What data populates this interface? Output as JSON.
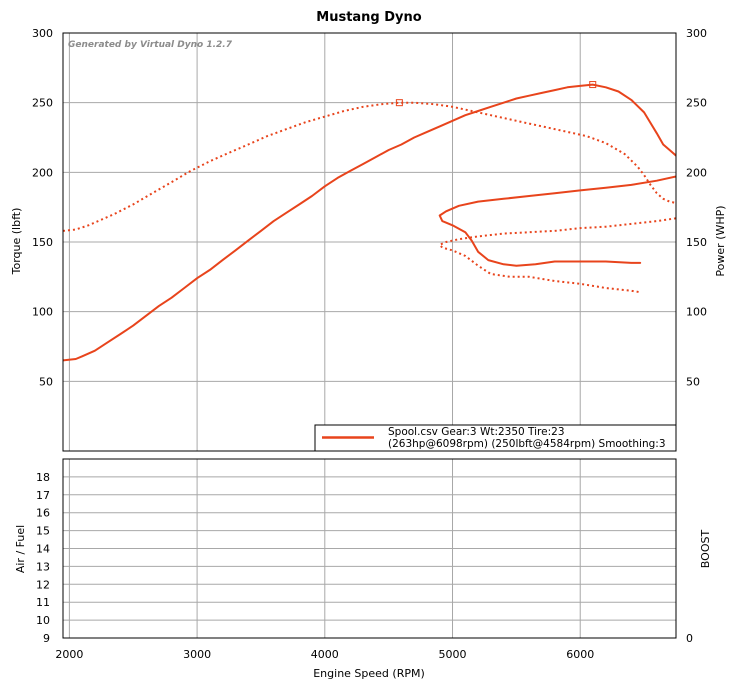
{
  "chart_data": [
    {
      "type": "line",
      "title": "Mustang Dyno",
      "watermark": "Generated by Virtual Dyno 1.2.7",
      "xlabel": "Engine Speed (RPM)",
      "ylabel": "Torque (lbft)",
      "y2label": "Power (WHP)",
      "xlim": [
        1950,
        6750
      ],
      "ylim": [
        0,
        300
      ],
      "y2lim": [
        0,
        300
      ],
      "x_ticks": [
        2000,
        3000,
        4000,
        5000,
        6000
      ],
      "y_ticks": [
        50,
        100,
        150,
        200,
        250,
        300
      ],
      "y2_ticks": [
        50,
        100,
        150,
        200,
        250,
        300
      ],
      "grid": true,
      "legend": {
        "placement": "bottom-right",
        "line1": "Spool.csv Gear:3 Wt:2350 Tire:23",
        "line2": "(263hp@6098rpm) (250lbft@4584rpm) Smoothing:3"
      },
      "series": [
        {
          "style": "solid",
          "color": "#e8441c",
          "axis": "power",
          "points": [
            [
              1950,
              65
            ],
            [
              2050,
              66
            ],
            [
              2100,
              68
            ],
            [
              2200,
              72
            ],
            [
              2300,
              78
            ],
            [
              2400,
              84
            ],
            [
              2500,
              90
            ],
            [
              2600,
              97
            ],
            [
              2700,
              104
            ],
            [
              2800,
              110
            ],
            [
              2900,
              117
            ],
            [
              3000,
              124
            ],
            [
              3100,
              130
            ],
            [
              3200,
              137
            ],
            [
              3300,
              144
            ],
            [
              3400,
              151
            ],
            [
              3500,
              158
            ],
            [
              3600,
              165
            ],
            [
              3700,
              171
            ],
            [
              3800,
              177
            ],
            [
              3900,
              183
            ],
            [
              4000,
              190
            ],
            [
              4100,
              196
            ],
            [
              4200,
              201
            ],
            [
              4300,
              206
            ],
            [
              4400,
              211
            ],
            [
              4500,
              216
            ],
            [
              4600,
              220
            ],
            [
              4700,
              225
            ],
            [
              4800,
              229
            ],
            [
              4900,
              233
            ],
            [
              5000,
              237
            ],
            [
              5100,
              241
            ],
            [
              5200,
              244
            ],
            [
              5300,
              247
            ],
            [
              5400,
              250
            ],
            [
              5500,
              253
            ],
            [
              5600,
              255
            ],
            [
              5700,
              257
            ],
            [
              5800,
              259
            ],
            [
              5900,
              261
            ],
            [
              6000,
              262
            ],
            [
              6098,
              263
            ],
            [
              6200,
              261
            ],
            [
              6300,
              258
            ],
            [
              6400,
              252
            ],
            [
              6500,
              243
            ],
            [
              6600,
              228
            ],
            [
              6650,
              220
            ],
            [
              6700,
              216
            ],
            [
              6750,
              212
            ]
          ]
        },
        {
          "style": "dotted",
          "color": "#e8441c",
          "axis": "torque",
          "points": [
            [
              1950,
              158
            ],
            [
              2050,
              159
            ],
            [
              2150,
              162
            ],
            [
              2250,
              166
            ],
            [
              2350,
              170
            ],
            [
              2500,
              177
            ],
            [
              2650,
              185
            ],
            [
              2800,
              193
            ],
            [
              2950,
              201
            ],
            [
              3100,
              208
            ],
            [
              3250,
              214
            ],
            [
              3400,
              220
            ],
            [
              3550,
              226
            ],
            [
              3700,
              231
            ],
            [
              3850,
              236
            ],
            [
              4000,
              240
            ],
            [
              4150,
              244
            ],
            [
              4300,
              247
            ],
            [
              4450,
              249
            ],
            [
              4584,
              250
            ],
            [
              4700,
              250
            ],
            [
              4850,
              249
            ],
            [
              5000,
              247
            ],
            [
              5150,
              244
            ],
            [
              5300,
              241
            ],
            [
              5450,
              238
            ],
            [
              5600,
              235
            ],
            [
              5750,
              232
            ],
            [
              5900,
              229
            ],
            [
              6050,
              226
            ],
            [
              6200,
              221
            ],
            [
              6350,
              213
            ],
            [
              6450,
              204
            ],
            [
              6500,
              198
            ],
            [
              6550,
              191
            ],
            [
              6600,
              185
            ],
            [
              6650,
              181
            ],
            [
              6700,
              179
            ],
            [
              6750,
              178
            ]
          ]
        },
        {
          "style": "solid",
          "color": "#e8441c",
          "axis": "torque",
          "points": [
            [
              6750,
              197
            ],
            [
              6600,
              194
            ],
            [
              6400,
              191
            ],
            [
              6200,
              189
            ],
            [
              6000,
              187
            ],
            [
              5800,
              185
            ],
            [
              5600,
              183
            ],
            [
              5400,
              181
            ],
            [
              5200,
              179
            ],
            [
              5050,
              176
            ],
            [
              4950,
              172
            ],
            [
              4900,
              169
            ],
            [
              4920,
              165
            ],
            [
              5000,
              162
            ],
            [
              5100,
              157
            ],
            [
              5150,
              151
            ],
            [
              5200,
              143
            ],
            [
              5280,
              137
            ],
            [
              5400,
              134
            ],
            [
              5500,
              133
            ],
            [
              5650,
              134
            ],
            [
              5800,
              136
            ],
            [
              6000,
              136
            ],
            [
              6200,
              136
            ],
            [
              6400,
              135
            ],
            [
              6470,
              135
            ]
          ]
        },
        {
          "style": "dotted",
          "color": "#e8441c",
          "axis": "torque",
          "points": [
            [
              6750,
              167
            ],
            [
              6600,
              165
            ],
            [
              6400,
              163
            ],
            [
              6200,
              161
            ],
            [
              6000,
              160
            ],
            [
              5800,
              158
            ],
            [
              5600,
              157
            ],
            [
              5400,
              156
            ],
            [
              5200,
              154
            ],
            [
              5050,
              152
            ],
            [
              4950,
              150
            ],
            [
              4900,
              148
            ],
            [
              4920,
              146
            ],
            [
              5000,
              144
            ],
            [
              5100,
              140
            ],
            [
              5200,
              133
            ],
            [
              5300,
              127
            ],
            [
              5450,
              125
            ],
            [
              5600,
              125
            ],
            [
              5800,
              122
            ],
            [
              6000,
              120
            ],
            [
              6200,
              117
            ],
            [
              6400,
              115
            ],
            [
              6470,
              114
            ]
          ]
        }
      ],
      "markers": [
        {
          "x": 4584,
          "y": 250,
          "shape": "square"
        },
        {
          "x": 6098,
          "y": 263,
          "shape": "square"
        }
      ]
    },
    {
      "type": "line",
      "xlabel": "Engine Speed (RPM)",
      "ylabel": "Air / Fuel",
      "y2label": "BOOST",
      "xlim": [
        1950,
        6750
      ],
      "ylim": [
        9,
        19
      ],
      "y_ticks": [
        9,
        10,
        11,
        12,
        13,
        14,
        15,
        16,
        17,
        18
      ],
      "y2_ticks": [
        0
      ],
      "x_ticks": [
        2000,
        3000,
        4000,
        5000,
        6000
      ],
      "x_tick_labels": [
        "2000",
        "3000",
        "4000",
        "5000",
        "6000"
      ],
      "grid": true,
      "series": []
    }
  ]
}
